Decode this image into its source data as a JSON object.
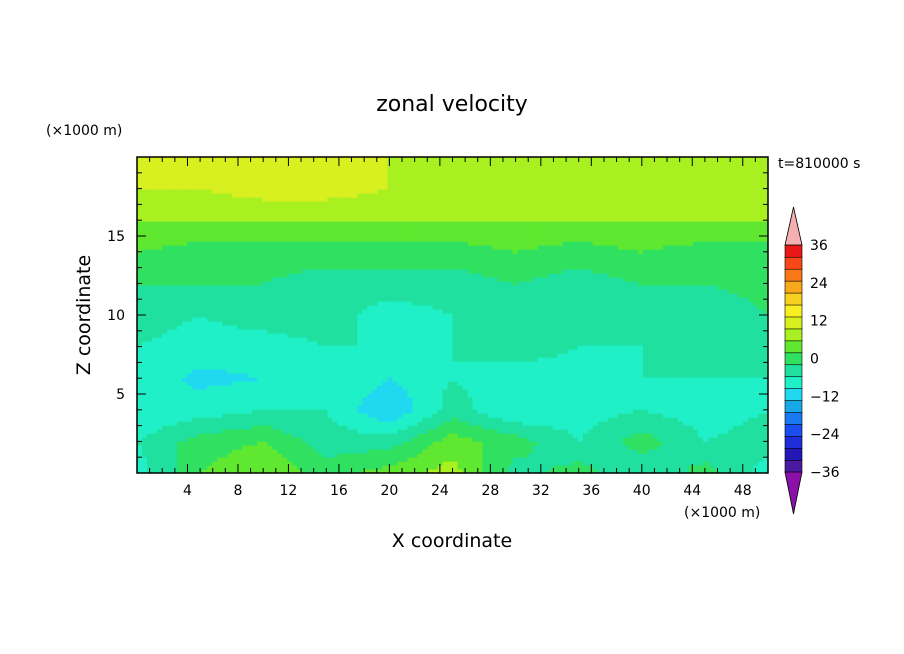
{
  "chart_data": {
    "type": "heatmap",
    "title": "zonal velocity",
    "xlabel": "X coordinate",
    "ylabel": "Z coordinate",
    "x_unit": "(×1000 m)",
    "y_unit": "(×1000 m)",
    "time_label": "t=810000 s",
    "xlim": [
      0,
      50
    ],
    "ylim": [
      0,
      20
    ],
    "x_ticks": [
      4,
      8,
      12,
      16,
      20,
      24,
      28,
      32,
      36,
      40,
      44,
      48
    ],
    "y_ticks": [
      5,
      10,
      15
    ],
    "colorbar": {
      "levels": [
        -40,
        -36,
        -32,
        -28,
        -24,
        -20,
        -16,
        -12,
        -8,
        -4,
        0,
        4,
        8,
        12,
        16,
        20,
        24,
        28,
        32,
        36,
        40
      ],
      "labeled_ticks": [
        -36,
        -24,
        -12,
        0,
        12,
        24,
        36
      ],
      "colors": [
        "#8a10a8",
        "#4a1aa0",
        "#2218b8",
        "#1e2ed8",
        "#1a4ef0",
        "#1a78f0",
        "#18a8e8",
        "#20d8f0",
        "#20f0c8",
        "#20e0a0",
        "#30e060",
        "#60e830",
        "#a8f020",
        "#d8f020",
        "#f8f020",
        "#f8d020",
        "#f8a818",
        "#f87818",
        "#f84818",
        "#e81818",
        "#f4b0b0"
      ],
      "extend": "both"
    },
    "field": {
      "x": [
        0,
        5,
        10,
        15,
        20,
        25,
        30,
        35,
        40,
        45,
        50
      ],
      "z": [
        0,
        2,
        4,
        6,
        8,
        10,
        12,
        14,
        16,
        18,
        20
      ],
      "values": [
        [
          -6,
          4,
          8,
          2,
          6,
          10,
          -2,
          2,
          -4,
          2,
          -6
        ],
        [
          -4,
          2,
          4,
          -2,
          -2,
          6,
          2,
          -4,
          2,
          -4,
          -2
        ],
        [
          -8,
          -6,
          -4,
          -4,
          -12,
          -2,
          -8,
          -6,
          -4,
          -6,
          -4
        ],
        [
          -6,
          -9,
          -8,
          -4,
          -8,
          -4,
          -6,
          -6,
          -4,
          -4,
          -4
        ],
        [
          -4,
          -6,
          -6,
          -4,
          -4,
          -4,
          -2,
          -4,
          -4,
          -4,
          -2
        ],
        [
          -2,
          -4,
          -2,
          -2,
          -6,
          -4,
          -2,
          -4,
          -2,
          -4,
          0
        ],
        [
          0,
          0,
          0,
          -2,
          -2,
          -2,
          0,
          -2,
          0,
          0,
          2
        ],
        [
          4,
          2,
          2,
          2,
          2,
          2,
          4,
          2,
          4,
          2,
          2
        ],
        [
          8,
          8,
          8,
          8,
          8,
          8,
          8,
          8,
          8,
          8,
          8
        ],
        [
          12,
          12,
          14,
          14,
          12,
          10,
          10,
          10,
          10,
          10,
          10
        ],
        [
          12,
          12,
          14,
          14,
          12,
          12,
          10,
          10,
          10,
          10,
          10
        ]
      ]
    }
  }
}
